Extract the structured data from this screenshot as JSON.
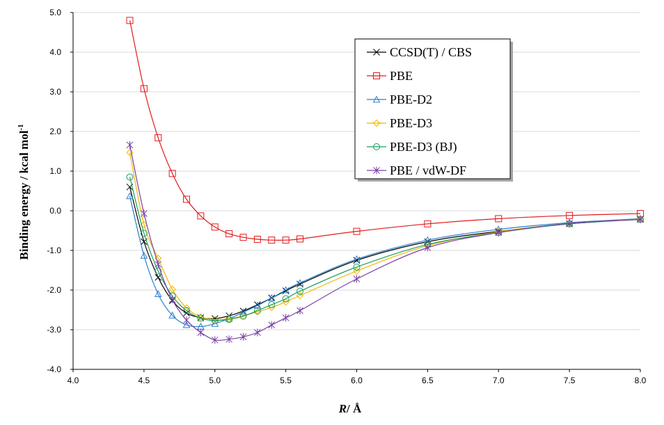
{
  "chart_data": {
    "type": "line",
    "title": "",
    "xlabel": "R",
    "xlabel_unit": "/ Å",
    "ylabel": "Binding energy / kcal mol",
    "ylabel_sup": "-1",
    "xlim": [
      4.0,
      8.0
    ],
    "ylim": [
      -4.0,
      5.0
    ],
    "x_ticks": [
      "4.0",
      "4.5",
      "5.0",
      "5.5",
      "6.0",
      "6.5",
      "7.0",
      "7.5",
      "8.0"
    ],
    "y_ticks": [
      "5.0",
      "4.0",
      "3.0",
      "2.0",
      "1.0",
      "0.0",
      "-1.0",
      "-2.0",
      "-3.0",
      "-4.0"
    ],
    "x_tick_values": [
      4.0,
      4.5,
      5.0,
      5.5,
      6.0,
      6.5,
      7.0,
      7.5,
      8.0
    ],
    "y_tick_values": [
      5.0,
      4.0,
      3.0,
      2.0,
      1.0,
      0.0,
      -1.0,
      -2.0,
      -3.0,
      -4.0
    ],
    "grid": "horizontal",
    "legend_position": "top-right",
    "series": [
      {
        "name": "CCSD(T) / CBS",
        "color": "#000000",
        "marker": "x",
        "x": [
          4.4,
          4.5,
          4.6,
          4.7,
          4.8,
          4.9,
          5.0,
          5.1,
          5.2,
          5.3,
          5.4,
          5.5,
          5.6,
          6.0,
          6.5,
          7.0,
          7.5,
          8.0
        ],
        "y": [
          0.6,
          -0.78,
          -1.68,
          -2.27,
          -2.58,
          -2.7,
          -2.72,
          -2.65,
          -2.53,
          -2.37,
          -2.2,
          -2.02,
          -1.85,
          -1.25,
          -0.78,
          -0.52,
          -0.33,
          -0.21
        ]
      },
      {
        "name": "PBE",
        "color": "#e31a1c",
        "marker": "square",
        "x": [
          4.4,
          4.5,
          4.6,
          4.7,
          4.8,
          4.9,
          5.0,
          5.1,
          5.2,
          5.3,
          5.4,
          5.5,
          5.6,
          6.0,
          6.5,
          7.0,
          7.5,
          8.0
        ],
        "y": [
          4.8,
          3.08,
          1.84,
          0.94,
          0.29,
          -0.13,
          -0.41,
          -0.58,
          -0.67,
          -0.72,
          -0.74,
          -0.74,
          -0.71,
          -0.52,
          -0.33,
          -0.2,
          -0.12,
          -0.07
        ]
      },
      {
        "name": "PBE-D2",
        "color": "#2a7fcc",
        "marker": "triangle",
        "x": [
          4.4,
          4.5,
          4.6,
          4.7,
          4.8,
          4.9,
          5.0,
          5.1,
          5.2,
          5.3,
          5.4,
          5.5,
          5.6,
          6.0,
          6.5,
          7.0,
          7.5,
          8.0
        ],
        "y": [
          0.37,
          -1.13,
          -2.1,
          -2.64,
          -2.88,
          -2.92,
          -2.85,
          -2.72,
          -2.56,
          -2.39,
          -2.2,
          -2.0,
          -1.82,
          -1.22,
          -0.74,
          -0.47,
          -0.3,
          -0.2
        ]
      },
      {
        "name": "PBE-D3",
        "color": "#f2b705",
        "marker": "diamond",
        "x": [
          4.4,
          4.5,
          4.6,
          4.7,
          4.8,
          4.9,
          5.0,
          5.1,
          5.2,
          5.3,
          5.4,
          5.5,
          5.6,
          6.0,
          6.5,
          7.0,
          7.5,
          8.0
        ],
        "y": [
          1.47,
          -0.35,
          -1.2,
          -1.98,
          -2.45,
          -2.68,
          -2.74,
          -2.72,
          -2.65,
          -2.55,
          -2.44,
          -2.3,
          -2.14,
          -1.52,
          -0.88,
          -0.53,
          -0.32,
          -0.21
        ]
      },
      {
        "name": "PBE-D3 (BJ)",
        "color": "#1a9e5c",
        "marker": "circle",
        "x": [
          4.4,
          4.5,
          4.6,
          4.7,
          4.8,
          4.9,
          5.0,
          5.1,
          5.2,
          5.3,
          5.4,
          5.5,
          5.6,
          6.0,
          6.5,
          7.0,
          7.5,
          8.0
        ],
        "y": [
          0.85,
          -0.57,
          -1.52,
          -2.15,
          -2.52,
          -2.71,
          -2.77,
          -2.74,
          -2.66,
          -2.52,
          -2.37,
          -2.22,
          -2.03,
          -1.42,
          -0.85,
          -0.55,
          -0.33,
          -0.22
        ]
      },
      {
        "name": "PBE / vdW-DF",
        "color": "#7b3fa6",
        "marker": "asterisk",
        "x": [
          4.4,
          4.5,
          4.6,
          4.7,
          4.8,
          4.9,
          5.0,
          5.1,
          5.2,
          5.3,
          5.4,
          5.5,
          5.6,
          6.0,
          6.5,
          7.0,
          7.5,
          8.0
        ],
        "y": [
          1.66,
          -0.07,
          -1.35,
          -2.24,
          -2.76,
          -3.07,
          -3.26,
          -3.24,
          -3.18,
          -3.07,
          -2.88,
          -2.7,
          -2.52,
          -1.72,
          -0.93,
          -0.55,
          -0.32,
          -0.22
        ]
      }
    ]
  }
}
